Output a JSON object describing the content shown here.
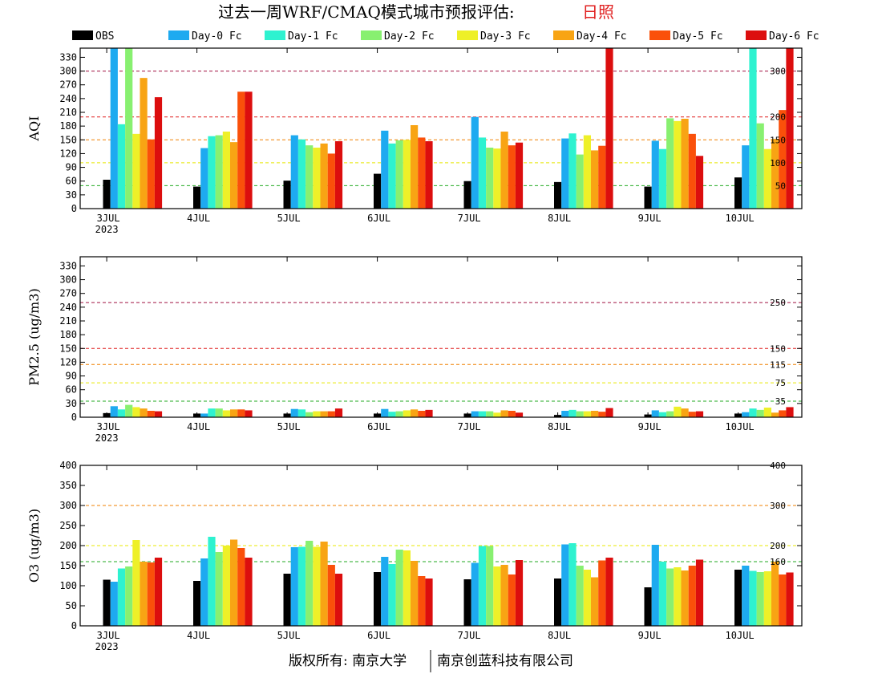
{
  "title": {
    "main": "过去一周WRF/CMAQ模式城市预报评估:",
    "station": "日照"
  },
  "legend": [
    {
      "label": "OBS",
      "color": "#000000"
    },
    {
      "label": "Day-0 Fc",
      "color": "#1eaaf0"
    },
    {
      "label": "Day-1 Fc",
      "color": "#2ef2d0"
    },
    {
      "label": "Day-2 Fc",
      "color": "#88f070"
    },
    {
      "label": "Day-3 Fc",
      "color": "#eef028"
    },
    {
      "label": "Day-4 Fc",
      "color": "#f8a414"
    },
    {
      "label": "Day-5 Fc",
      "color": "#fa500a"
    },
    {
      "label": "Day-6 Fc",
      "color": "#dc0e0e"
    }
  ],
  "footer": {
    "left": "版权所有: 南京大学",
    "right": "南京创蓝科技有限公司"
  },
  "chart_data": [
    {
      "type": "bar",
      "ylabel": "AQI",
      "ylim": [
        0,
        350
      ],
      "yticks": [
        0,
        30,
        60,
        90,
        120,
        150,
        180,
        210,
        240,
        270,
        300,
        330
      ],
      "categories": [
        "3JUL",
        "4JUL",
        "5JUL",
        "6JUL",
        "7JUL",
        "8JUL",
        "9JUL",
        "10JUL"
      ],
      "first_category_sub": "2023",
      "reference_lines": [
        {
          "value": 50,
          "label": "50",
          "color": "#22aa22"
        },
        {
          "value": 100,
          "label": "100",
          "color": "#e8e800"
        },
        {
          "value": 150,
          "label": "150",
          "color": "#f08000"
        },
        {
          "value": 200,
          "label": "200",
          "color": "#e02020"
        },
        {
          "value": 300,
          "label": "300",
          "color": "#a01040"
        }
      ],
      "series": [
        {
          "name": "OBS",
          "values": [
            63,
            48,
            61,
            76,
            60,
            58,
            48,
            68
          ]
        },
        {
          "name": "Day-0 Fc",
          "values": [
            350,
            132,
            160,
            170,
            200,
            153,
            148,
            138
          ]
        },
        {
          "name": "Day-1 Fc",
          "values": [
            184,
            158,
            151,
            142,
            155,
            164,
            130,
            350
          ]
        },
        {
          "name": "Day-2 Fc",
          "values": [
            350,
            160,
            138,
            149,
            133,
            118,
            197,
            186
          ]
        },
        {
          "name": "Day-3 Fc",
          "values": [
            163,
            168,
            133,
            150,
            131,
            160,
            191,
            130
          ]
        },
        {
          "name": "Day-4 Fc",
          "values": [
            285,
            145,
            142,
            182,
            168,
            127,
            196,
            152
          ]
        },
        {
          "name": "Day-5 Fc",
          "values": [
            151,
            255,
            120,
            155,
            138,
            137,
            163,
            215
          ]
        },
        {
          "name": "Day-6 Fc",
          "values": [
            243,
            255,
            147,
            147,
            144,
            350,
            115,
            350
          ]
        }
      ]
    },
    {
      "type": "bar",
      "ylabel": "PM2.5 (ug/m3)",
      "ylim": [
        0,
        350
      ],
      "yticks": [
        0,
        30,
        60,
        90,
        120,
        150,
        180,
        210,
        240,
        270,
        300,
        330
      ],
      "categories": [
        "3JUL",
        "4JUL",
        "5JUL",
        "6JUL",
        "7JUL",
        "8JUL",
        "9JUL",
        "10JUL"
      ],
      "first_category_sub": "2023",
      "reference_lines": [
        {
          "value": 35,
          "label": "35",
          "color": "#22aa22"
        },
        {
          "value": 75,
          "label": "75",
          "color": "#e8e800"
        },
        {
          "value": 115,
          "label": "115",
          "color": "#f08000"
        },
        {
          "value": 150,
          "label": "150",
          "color": "#e02020"
        },
        {
          "value": 250,
          "label": "250",
          "color": "#a01040"
        }
      ],
      "series": [
        {
          "name": "OBS",
          "values": [
            9,
            8,
            8,
            8,
            8,
            5,
            6,
            8
          ]
        },
        {
          "name": "Day-0 Fc",
          "values": [
            24,
            8,
            18,
            18,
            13,
            14,
            15,
            11
          ]
        },
        {
          "name": "Day-1 Fc",
          "values": [
            17,
            19,
            17,
            12,
            13,
            16,
            11,
            19
          ]
        },
        {
          "name": "Day-2 Fc",
          "values": [
            27,
            19,
            11,
            13,
            13,
            13,
            13,
            16
          ]
        },
        {
          "name": "Day-3 Fc",
          "values": [
            22,
            15,
            13,
            15,
            10,
            13,
            23,
            21
          ]
        },
        {
          "name": "Day-4 Fc",
          "values": [
            19,
            17,
            13,
            17,
            15,
            14,
            19,
            10
          ]
        },
        {
          "name": "Day-5 Fc",
          "values": [
            14,
            17,
            13,
            14,
            14,
            12,
            12,
            15
          ]
        },
        {
          "name": "Day-6 Fc",
          "values": [
            13,
            15,
            19,
            16,
            10,
            20,
            13,
            22
          ]
        }
      ]
    },
    {
      "type": "bar",
      "ylabel": "O3 (ug/m3)",
      "ylim": [
        0,
        400
      ],
      "yticks": [
        0,
        50,
        100,
        150,
        200,
        250,
        300,
        350,
        400
      ],
      "categories": [
        "3JUL",
        "4JUL",
        "5JUL",
        "6JUL",
        "7JUL",
        "8JUL",
        "9JUL",
        "10JUL"
      ],
      "first_category_sub": "2023",
      "reference_lines": [
        {
          "value": 160,
          "label": "160",
          "color": "#22aa22"
        },
        {
          "value": 200,
          "label": "200",
          "color": "#e8e800"
        },
        {
          "value": 300,
          "label": "300",
          "color": "#f08000"
        },
        {
          "value": 400,
          "label": "400",
          "color": "#e02020"
        }
      ],
      "series": [
        {
          "name": "OBS",
          "values": [
            115,
            112,
            130,
            134,
            116,
            118,
            96,
            140
          ]
        },
        {
          "name": "Day-0 Fc",
          "values": [
            110,
            168,
            196,
            172,
            157,
            203,
            202,
            150
          ]
        },
        {
          "name": "Day-1 Fc",
          "values": [
            143,
            222,
            197,
            154,
            199,
            206,
            160,
            137
          ]
        },
        {
          "name": "Day-2 Fc",
          "values": [
            148,
            184,
            212,
            190,
            199,
            150,
            143,
            134
          ]
        },
        {
          "name": "Day-3 Fc",
          "values": [
            214,
            200,
            197,
            188,
            148,
            140,
            146,
            136
          ]
        },
        {
          "name": "Day-4 Fc",
          "values": [
            160,
            215,
            210,
            162,
            152,
            121,
            138,
            160
          ]
        },
        {
          "name": "Day-5 Fc",
          "values": [
            158,
            194,
            152,
            124,
            128,
            163,
            150,
            128
          ]
        },
        {
          "name": "Day-6 Fc",
          "values": [
            170,
            170,
            130,
            118,
            164,
            170,
            165,
            133
          ]
        }
      ]
    }
  ]
}
